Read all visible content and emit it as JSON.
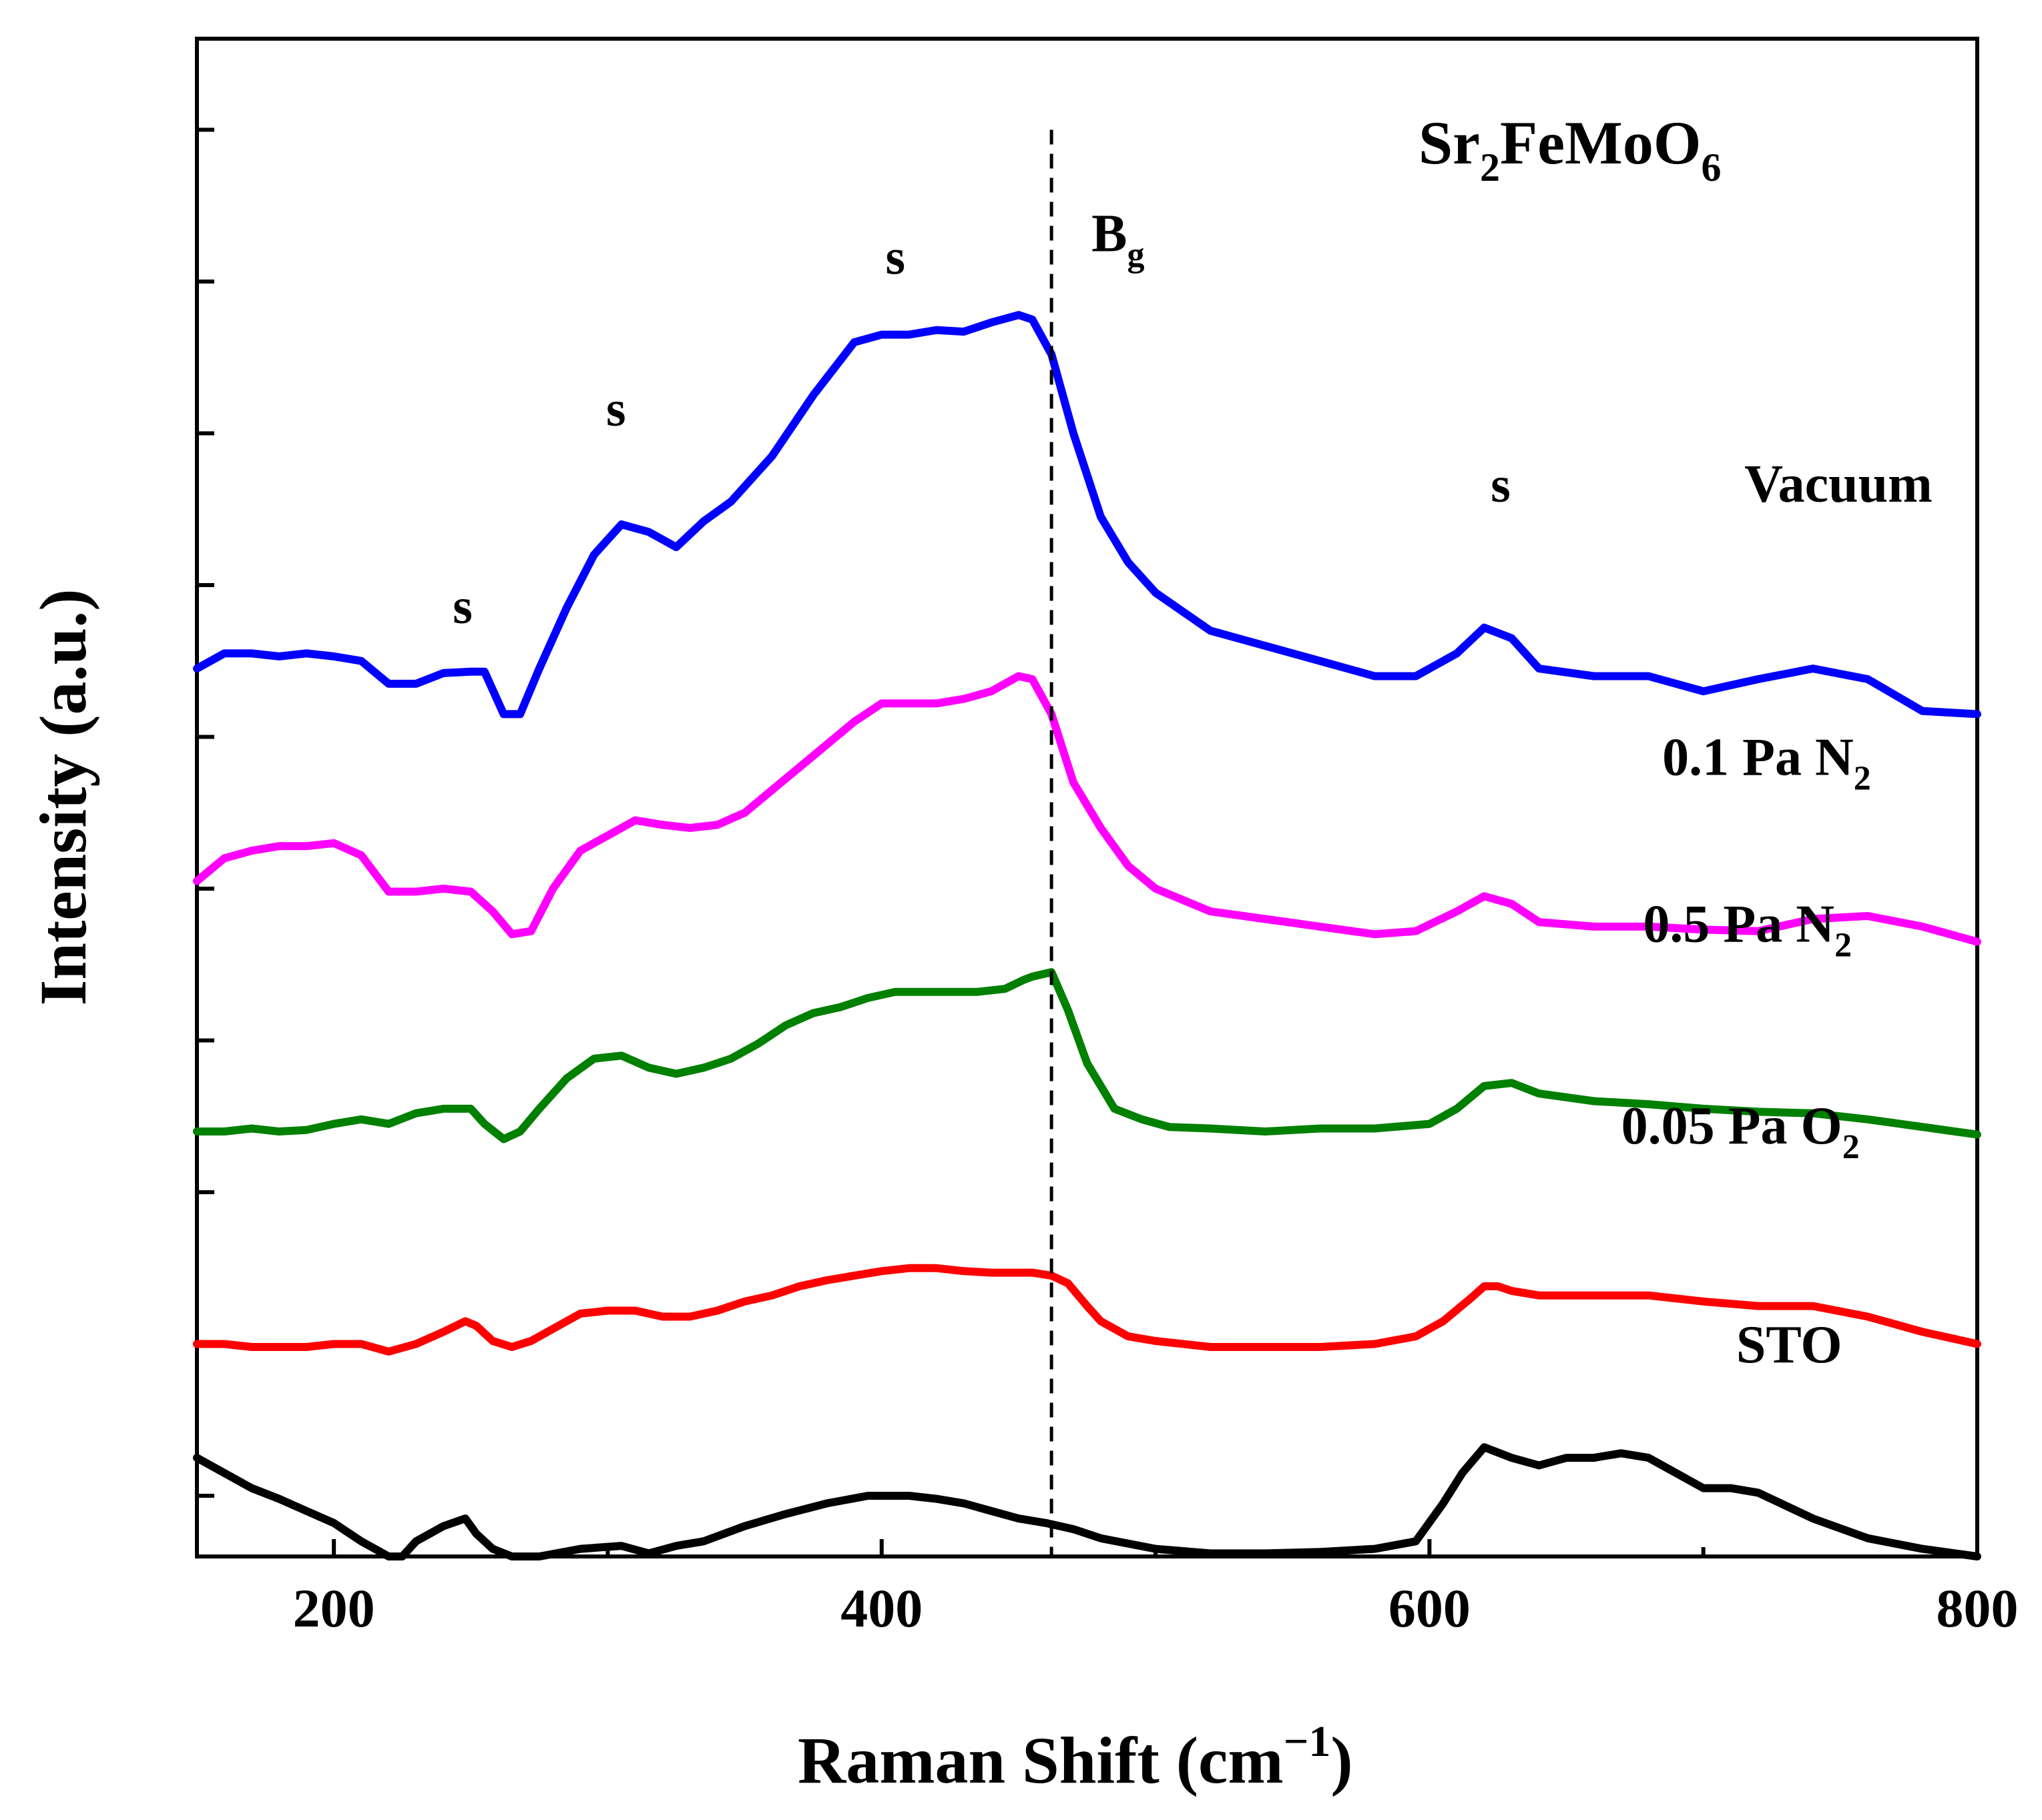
{
  "chart_data": {
    "type": "line",
    "title": "Sr2FeMoO6",
    "title_parts": {
      "main": "Sr",
      "sub1": "2",
      "mid": "FeMoO",
      "sub2": "6"
    },
    "xlabel": "Raman Shift (cm",
    "xlabel_sup": "−1",
    "xlabel_close": ")",
    "ylabel": "Intensity (a.u.)",
    "xlim": [
      150,
      800
    ],
    "ylim": [
      0,
      10
    ],
    "xticks": [
      200,
      400,
      600,
      800
    ],
    "xtick_labels": [
      "200",
      "400",
      "600",
      "800"
    ],
    "yticks": [
      0.4,
      1.4,
      2.4,
      3.4,
      4.4,
      5.4,
      6.4,
      7.4,
      8.4,
      9.4
    ],
    "grid": false,
    "reference_line": {
      "x": 462,
      "style": "dashed",
      "label_main": "B",
      "label_sub": "g"
    },
    "peak_labels": [
      {
        "text": "s",
        "x": 247,
        "y": 6.15
      },
      {
        "text": "s",
        "x": 303,
        "y": 7.45
      },
      {
        "text": "s",
        "x": 405,
        "y": 8.45
      },
      {
        "text": "s",
        "x": 626,
        "y": 6.95
      }
    ],
    "series": [
      {
        "name": "Vacuum",
        "label_main": "Vacuum",
        "label_sub": "",
        "color": "#0000ff",
        "label_x": 715,
        "label_y": 6.95,
        "x": [
          150,
          160,
          170,
          180,
          190,
          200,
          210,
          220,
          230,
          240,
          250,
          255,
          262,
          268,
          275,
          285,
          295,
          305,
          315,
          325,
          335,
          345,
          360,
          375,
          390,
          400,
          410,
          420,
          430,
          440,
          450,
          455,
          462,
          470,
          480,
          490,
          500,
          520,
          540,
          560,
          580,
          595,
          610,
          620,
          630,
          640,
          660,
          680,
          700,
          720,
          740,
          760,
          780,
          800
        ],
        "y": [
          5.85,
          5.95,
          5.95,
          5.93,
          5.95,
          5.93,
          5.9,
          5.75,
          5.75,
          5.82,
          5.83,
          5.83,
          5.55,
          5.55,
          5.85,
          6.25,
          6.6,
          6.8,
          6.75,
          6.65,
          6.82,
          6.95,
          7.25,
          7.65,
          8.0,
          8.05,
          8.05,
          8.08,
          8.07,
          8.13,
          8.18,
          8.15,
          7.92,
          7.4,
          6.85,
          6.55,
          6.35,
          6.1,
          6.0,
          5.9,
          5.8,
          5.8,
          5.95,
          6.12,
          6.05,
          5.85,
          5.8,
          5.8,
          5.7,
          5.78,
          5.85,
          5.78,
          5.57,
          5.55
        ]
      },
      {
        "name": "0.1 Pa N2",
        "label_main": "0.1 Pa N",
        "label_sub": "2",
        "color": "#ff00ff",
        "label_x": 685,
        "label_y": 5.15,
        "x": [
          150,
          160,
          170,
          180,
          190,
          200,
          210,
          220,
          230,
          240,
          250,
          258,
          265,
          272,
          280,
          290,
          300,
          310,
          320,
          330,
          340,
          350,
          360,
          370,
          380,
          390,
          400,
          410,
          420,
          430,
          440,
          450,
          455,
          462,
          470,
          480,
          490,
          500,
          520,
          540,
          560,
          580,
          595,
          610,
          620,
          630,
          640,
          660,
          680,
          700,
          720,
          740,
          760,
          780,
          800
        ],
        "y": [
          4.45,
          4.6,
          4.65,
          4.68,
          4.68,
          4.7,
          4.62,
          4.38,
          4.38,
          4.4,
          4.38,
          4.25,
          4.1,
          4.12,
          4.4,
          4.65,
          4.75,
          4.85,
          4.82,
          4.8,
          4.82,
          4.9,
          5.05,
          5.2,
          5.35,
          5.5,
          5.62,
          5.62,
          5.62,
          5.65,
          5.7,
          5.8,
          5.78,
          5.55,
          5.1,
          4.8,
          4.55,
          4.4,
          4.25,
          4.2,
          4.15,
          4.1,
          4.12,
          4.25,
          4.35,
          4.3,
          4.18,
          4.15,
          4.15,
          4.13,
          4.12,
          4.2,
          4.22,
          4.15,
          4.05
        ]
      },
      {
        "name": "0.5 Pa N2",
        "label_main": "0.5 Pa N",
        "label_sub": "2",
        "color": "#008000",
        "label_x": 678,
        "label_y": 4.05,
        "x": [
          150,
          160,
          170,
          180,
          190,
          200,
          210,
          220,
          230,
          240,
          250,
          255,
          262,
          268,
          275,
          285,
          295,
          305,
          315,
          325,
          335,
          345,
          355,
          365,
          375,
          385,
          395,
          405,
          415,
          425,
          435,
          445,
          452,
          455,
          462,
          468,
          475,
          485,
          495,
          505,
          520,
          540,
          560,
          580,
          600,
          610,
          620,
          630,
          640,
          660,
          680,
          700,
          720,
          740,
          760,
          780,
          800
        ],
        "y": [
          2.8,
          2.8,
          2.82,
          2.8,
          2.81,
          2.85,
          2.88,
          2.85,
          2.92,
          2.95,
          2.95,
          2.85,
          2.75,
          2.8,
          2.95,
          3.15,
          3.28,
          3.3,
          3.22,
          3.18,
          3.22,
          3.28,
          3.38,
          3.5,
          3.58,
          3.62,
          3.68,
          3.72,
          3.72,
          3.72,
          3.72,
          3.74,
          3.8,
          3.82,
          3.85,
          3.6,
          3.25,
          2.95,
          2.88,
          2.83,
          2.82,
          2.8,
          2.82,
          2.82,
          2.85,
          2.95,
          3.1,
          3.12,
          3.05,
          3.0,
          2.98,
          2.95,
          2.93,
          2.92,
          2.88,
          2.83,
          2.78
        ]
      },
      {
        "name": "0.05 Pa O2",
        "label_main": "0.05 Pa O",
        "label_sub": "2",
        "color": "#ff0000",
        "label_x": 670,
        "label_y": 2.72,
        "x": [
          150,
          160,
          170,
          180,
          190,
          200,
          210,
          220,
          230,
          240,
          248,
          252,
          258,
          265,
          272,
          280,
          290,
          300,
          310,
          320,
          330,
          340,
          350,
          360,
          370,
          380,
          390,
          400,
          410,
          420,
          430,
          440,
          450,
          455,
          462,
          468,
          475,
          480,
          490,
          500,
          520,
          540,
          560,
          580,
          595,
          605,
          615,
          620,
          625,
          630,
          640,
          660,
          680,
          700,
          720,
          740,
          760,
          780,
          800
        ],
        "y": [
          1.4,
          1.4,
          1.38,
          1.38,
          1.38,
          1.4,
          1.4,
          1.35,
          1.4,
          1.48,
          1.55,
          1.52,
          1.42,
          1.38,
          1.42,
          1.5,
          1.6,
          1.62,
          1.62,
          1.58,
          1.58,
          1.62,
          1.68,
          1.72,
          1.78,
          1.82,
          1.85,
          1.88,
          1.9,
          1.9,
          1.88,
          1.87,
          1.87,
          1.87,
          1.85,
          1.8,
          1.65,
          1.55,
          1.45,
          1.42,
          1.38,
          1.38,
          1.38,
          1.4,
          1.45,
          1.55,
          1.7,
          1.78,
          1.78,
          1.75,
          1.72,
          1.72,
          1.72,
          1.68,
          1.65,
          1.65,
          1.58,
          1.48,
          1.4
        ]
      },
      {
        "name": "STO",
        "label_main": "STO",
        "label_sub": "",
        "color": "#000000",
        "label_x": 712,
        "label_y": 1.28,
        "x": [
          150,
          160,
          170,
          180,
          190,
          200,
          210,
          220,
          225,
          230,
          240,
          248,
          252,
          258,
          265,
          275,
          290,
          305,
          315,
          325,
          335,
          350,
          365,
          380,
          395,
          410,
          420,
          430,
          440,
          450,
          460,
          470,
          480,
          500,
          520,
          540,
          560,
          580,
          595,
          605,
          612,
          620,
          630,
          640,
          650,
          660,
          670,
          680,
          690,
          700,
          710,
          720,
          740,
          760,
          780,
          800
        ],
        "y": [
          0.65,
          0.55,
          0.45,
          0.38,
          0.3,
          0.22,
          0.1,
          0.0,
          0.0,
          0.1,
          0.2,
          0.25,
          0.15,
          0.05,
          0.0,
          0.0,
          0.05,
          0.07,
          0.02,
          0.07,
          0.1,
          0.2,
          0.28,
          0.35,
          0.4,
          0.4,
          0.38,
          0.35,
          0.3,
          0.25,
          0.22,
          0.18,
          0.12,
          0.05,
          0.02,
          0.02,
          0.03,
          0.05,
          0.1,
          0.35,
          0.55,
          0.72,
          0.65,
          0.6,
          0.65,
          0.65,
          0.68,
          0.65,
          0.55,
          0.45,
          0.45,
          0.42,
          0.25,
          0.12,
          0.05,
          0.0
        ]
      }
    ]
  }
}
